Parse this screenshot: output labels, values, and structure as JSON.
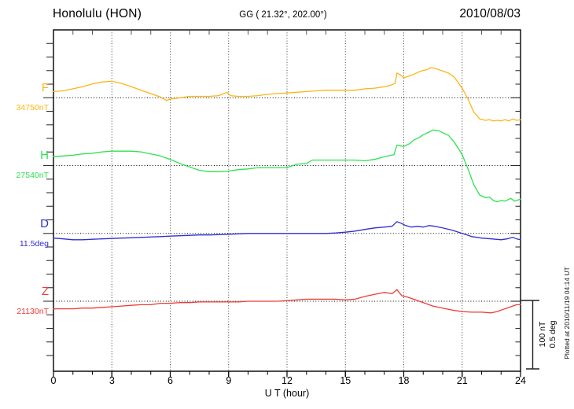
{
  "header": {
    "station_name": "Honolulu (HON)",
    "coordinates": "GG ( 21.32°, 202.00°)",
    "date": "2010/08/03"
  },
  "xaxis": {
    "label": "U T (hour)",
    "ticks": [
      "0",
      "3",
      "6",
      "9",
      "12",
      "15",
      "18",
      "21",
      "24"
    ]
  },
  "scale_bar": {
    "nt_label": "100 nT",
    "deg_label": "0.5 deg"
  },
  "footer_note": "Plotted at 2010/11/19 04:14 UT",
  "channels": [
    {
      "letter": "F",
      "value_label": "34750nT",
      "color": "#fdb515"
    },
    {
      "letter": "H",
      "value_label": "27540nT",
      "color": "#2ee24f"
    },
    {
      "letter": "D",
      "value_label": "11.5deg",
      "color": "#2f2fd3"
    },
    {
      "letter": "Z",
      "value_label": "21130nT",
      "color": "#ef3b36"
    }
  ],
  "chart_data": {
    "type": "line",
    "title": "Honolulu (HON) magnetogram, 2010/08/03",
    "xlabel": "U T (hour)",
    "x_range": [
      0,
      24
    ],
    "x_ticks": [
      0,
      3,
      6,
      9,
      12,
      15,
      18,
      21,
      24
    ],
    "grid": "dotted vertical lines every 3 h; dotted horizontal baseline per channel",
    "legend_position": "left-side channel labels",
    "scale_bar": {
      "nT_per_bar": 100,
      "deg_per_bar": 0.5
    },
    "series": [
      {
        "name": "F",
        "unit": "nT",
        "baseline": 34750,
        "color": "#fdb515",
        "points": [
          [
            0,
            34759
          ],
          [
            0.5,
            34760
          ],
          [
            1,
            34763
          ],
          [
            1.5,
            34766
          ],
          [
            2,
            34770
          ],
          [
            2.5,
            34773
          ],
          [
            3,
            34774
          ],
          [
            3.5,
            34771
          ],
          [
            4,
            34766
          ],
          [
            4.5,
            34761
          ],
          [
            5,
            34756
          ],
          [
            5.5,
            34751
          ],
          [
            5.8,
            34746
          ],
          [
            6,
            34748
          ],
          [
            6.5,
            34750
          ],
          [
            7,
            34752
          ],
          [
            7.5,
            34752
          ],
          [
            8,
            34752
          ],
          [
            8.5,
            34753
          ],
          [
            8.9,
            34758
          ],
          [
            9.1,
            34753
          ],
          [
            9.5,
            34752
          ],
          [
            10,
            34752
          ],
          [
            10.5,
            34753
          ],
          [
            11,
            34755
          ],
          [
            11.5,
            34756
          ],
          [
            12,
            34757
          ],
          [
            12.5,
            34758
          ],
          [
            13,
            34759
          ],
          [
            13.5,
            34760
          ],
          [
            14,
            34761
          ],
          [
            14.5,
            34761
          ],
          [
            15,
            34761
          ],
          [
            15.5,
            34761
          ],
          [
            16,
            34763
          ],
          [
            16.5,
            34764
          ],
          [
            17,
            34766
          ],
          [
            17.3,
            34768
          ],
          [
            17.55,
            34771
          ],
          [
            17.65,
            34786
          ],
          [
            17.8,
            34784
          ],
          [
            18,
            34779
          ],
          [
            18.2,
            34781
          ],
          [
            18.5,
            34784
          ],
          [
            18.8,
            34788
          ],
          [
            19,
            34790
          ],
          [
            19.2,
            34791
          ],
          [
            19.4,
            34794
          ],
          [
            19.6,
            34793
          ],
          [
            19.8,
            34791
          ],
          [
            20,
            34789
          ],
          [
            20.3,
            34786
          ],
          [
            20.6,
            34780
          ],
          [
            21,
            34764
          ],
          [
            21.3,
            34748
          ],
          [
            21.6,
            34729
          ],
          [
            21.9,
            34719
          ],
          [
            22.2,
            34717
          ],
          [
            22.4,
            34718
          ],
          [
            22.6,
            34716
          ],
          [
            22.8,
            34717
          ],
          [
            23,
            34716
          ],
          [
            23.2,
            34718
          ],
          [
            23.4,
            34716
          ],
          [
            23.6,
            34719
          ],
          [
            23.8,
            34717
          ],
          [
            24,
            34718
          ]
        ]
      },
      {
        "name": "H",
        "unit": "nT",
        "baseline": 27540,
        "color": "#2ee24f",
        "points": [
          [
            0,
            27553
          ],
          [
            0.5,
            27554
          ],
          [
            1,
            27555
          ],
          [
            1.5,
            27557
          ],
          [
            2,
            27558
          ],
          [
            2.5,
            27560
          ],
          [
            3,
            27561
          ],
          [
            3.5,
            27561
          ],
          [
            4,
            27561
          ],
          [
            4.5,
            27560
          ],
          [
            5,
            27557
          ],
          [
            5.5,
            27554
          ],
          [
            6,
            27549
          ],
          [
            6.5,
            27543
          ],
          [
            7,
            27538
          ],
          [
            7.5,
            27533
          ],
          [
            8,
            27531
          ],
          [
            8.5,
            27531
          ],
          [
            9,
            27532
          ],
          [
            9.5,
            27534
          ],
          [
            10,
            27535
          ],
          [
            10.5,
            27537
          ],
          [
            11,
            27537
          ],
          [
            11.5,
            27537
          ],
          [
            12,
            27537
          ],
          [
            12.5,
            27542
          ],
          [
            13,
            27543
          ],
          [
            13.3,
            27548
          ],
          [
            13.5,
            27548
          ],
          [
            14,
            27548
          ],
          [
            14.5,
            27548
          ],
          [
            15,
            27548
          ],
          [
            15.5,
            27548
          ],
          [
            16,
            27547
          ],
          [
            16.5,
            27549
          ],
          [
            17,
            27553
          ],
          [
            17.5,
            27556
          ],
          [
            17.65,
            27570
          ],
          [
            17.8,
            27569
          ],
          [
            18,
            27568
          ],
          [
            18.3,
            27572
          ],
          [
            18.5,
            27577
          ],
          [
            18.8,
            27581
          ],
          [
            19,
            27585
          ],
          [
            19.3,
            27589
          ],
          [
            19.5,
            27592
          ],
          [
            19.8,
            27591
          ],
          [
            20,
            27588
          ],
          [
            20.3,
            27584
          ],
          [
            20.6,
            27574
          ],
          [
            21,
            27556
          ],
          [
            21.3,
            27535
          ],
          [
            21.6,
            27512
          ],
          [
            21.9,
            27497
          ],
          [
            22.2,
            27493
          ],
          [
            22.4,
            27494
          ],
          [
            22.6,
            27489
          ],
          [
            22.8,
            27487
          ],
          [
            23,
            27489
          ],
          [
            23.2,
            27488
          ],
          [
            23.5,
            27492
          ],
          [
            23.7,
            27488
          ],
          [
            24,
            27491
          ]
        ]
      },
      {
        "name": "D",
        "unit": "deg",
        "baseline": 11.5,
        "color": "#2f2fd3",
        "points": [
          [
            0,
            11.466
          ],
          [
            0.5,
            11.46
          ],
          [
            1,
            11.454
          ],
          [
            1.5,
            11.454
          ],
          [
            2,
            11.457
          ],
          [
            2.5,
            11.46
          ],
          [
            3,
            11.463
          ],
          [
            3.5,
            11.466
          ],
          [
            4,
            11.468
          ],
          [
            4.5,
            11.471
          ],
          [
            5,
            11.474
          ],
          [
            5.5,
            11.477
          ],
          [
            6,
            11.48
          ],
          [
            6.5,
            11.483
          ],
          [
            7,
            11.486
          ],
          [
            7.5,
            11.489
          ],
          [
            8,
            11.489
          ],
          [
            8.5,
            11.491
          ],
          [
            9,
            11.494
          ],
          [
            9.5,
            11.497
          ],
          [
            10,
            11.5
          ],
          [
            11,
            11.5
          ],
          [
            12,
            11.5
          ],
          [
            13,
            11.5
          ],
          [
            14,
            11.5
          ],
          [
            14.5,
            11.503
          ],
          [
            15,
            11.509
          ],
          [
            15.5,
            11.517
          ],
          [
            16,
            11.529
          ],
          [
            16.5,
            11.54
          ],
          [
            17,
            11.546
          ],
          [
            17.4,
            11.552
          ],
          [
            17.65,
            11.586
          ],
          [
            17.85,
            11.575
          ],
          [
            18.1,
            11.557
          ],
          [
            18.4,
            11.546
          ],
          [
            18.7,
            11.552
          ],
          [
            19,
            11.546
          ],
          [
            19.3,
            11.557
          ],
          [
            19.6,
            11.552
          ],
          [
            20,
            11.54
          ],
          [
            20.5,
            11.523
          ],
          [
            21,
            11.5
          ],
          [
            21.5,
            11.477
          ],
          [
            22,
            11.466
          ],
          [
            22.5,
            11.46
          ],
          [
            23,
            11.454
          ],
          [
            23.3,
            11.46
          ],
          [
            23.6,
            11.471
          ],
          [
            23.8,
            11.46
          ],
          [
            24,
            11.454
          ]
        ]
      },
      {
        "name": "Z",
        "unit": "nT",
        "baseline": 21130,
        "color": "#ef3b36",
        "points": [
          [
            0,
            21119
          ],
          [
            0.5,
            21119
          ],
          [
            1,
            21119
          ],
          [
            1.5,
            21120
          ],
          [
            2,
            21120
          ],
          [
            2.5,
            21121
          ],
          [
            3,
            21122
          ],
          [
            3.5,
            21123
          ],
          [
            4,
            21124
          ],
          [
            4.5,
            21125
          ],
          [
            5,
            21125
          ],
          [
            5.5,
            21127
          ],
          [
            6,
            21127
          ],
          [
            6.5,
            21128
          ],
          [
            7,
            21128
          ],
          [
            7.5,
            21129
          ],
          [
            8,
            21129
          ],
          [
            8.5,
            21129
          ],
          [
            9,
            21129
          ],
          [
            9.5,
            21129
          ],
          [
            10,
            21130
          ],
          [
            10.5,
            21130
          ],
          [
            11,
            21130
          ],
          [
            11.5,
            21130
          ],
          [
            12,
            21131
          ],
          [
            12.5,
            21132
          ],
          [
            13,
            21133
          ],
          [
            13.5,
            21133
          ],
          [
            14,
            21133
          ],
          [
            14.5,
            21133
          ],
          [
            15,
            21132
          ],
          [
            15.5,
            21133
          ],
          [
            16,
            21137
          ],
          [
            16.5,
            21140
          ],
          [
            17,
            21143
          ],
          [
            17.4,
            21141
          ],
          [
            17.65,
            21147
          ],
          [
            17.9,
            21138
          ],
          [
            18.2,
            21136
          ],
          [
            18.5,
            21133
          ],
          [
            18.8,
            21130
          ],
          [
            19,
            21128
          ],
          [
            19.5,
            21123
          ],
          [
            20,
            21120
          ],
          [
            20.5,
            21117
          ],
          [
            21,
            21115
          ],
          [
            21.5,
            21114
          ],
          [
            22,
            21114
          ],
          [
            22.5,
            21113
          ],
          [
            22.8,
            21115
          ],
          [
            23,
            21117
          ],
          [
            23.3,
            21120
          ],
          [
            23.5,
            21122
          ],
          [
            23.8,
            21125
          ],
          [
            24,
            21125
          ]
        ]
      }
    ]
  }
}
